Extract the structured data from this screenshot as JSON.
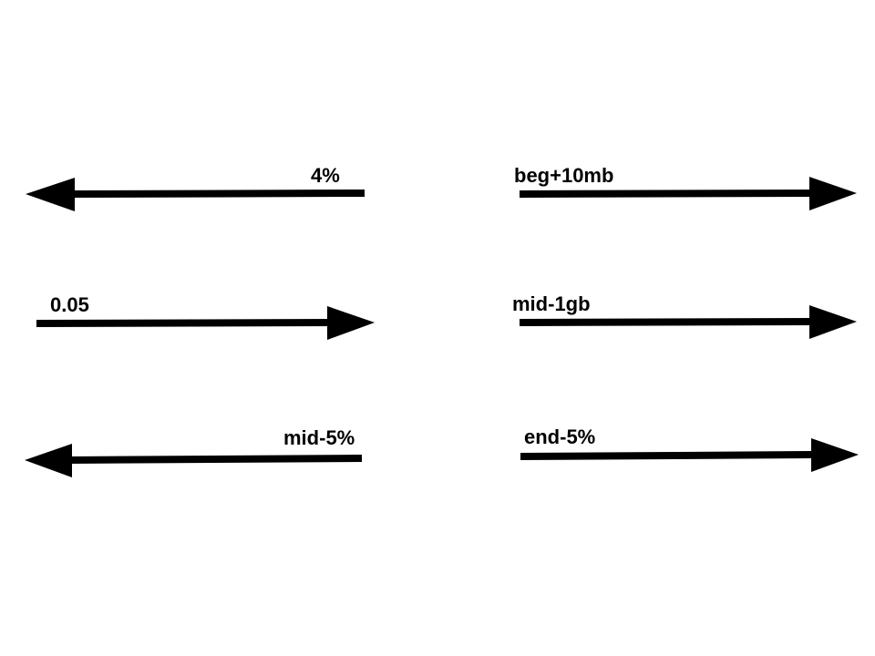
{
  "colors": {
    "background": "#ffffff",
    "ink": "#000000"
  },
  "arrows": [
    {
      "label": "4%",
      "direction": "left"
    },
    {
      "label": "beg+10mb",
      "direction": "right"
    },
    {
      "label": "0.05",
      "direction": "right"
    },
    {
      "label": "mid-1gb",
      "direction": "right"
    },
    {
      "label": "mid-5%",
      "direction": "left"
    },
    {
      "label": "end-5%",
      "direction": "right"
    }
  ]
}
